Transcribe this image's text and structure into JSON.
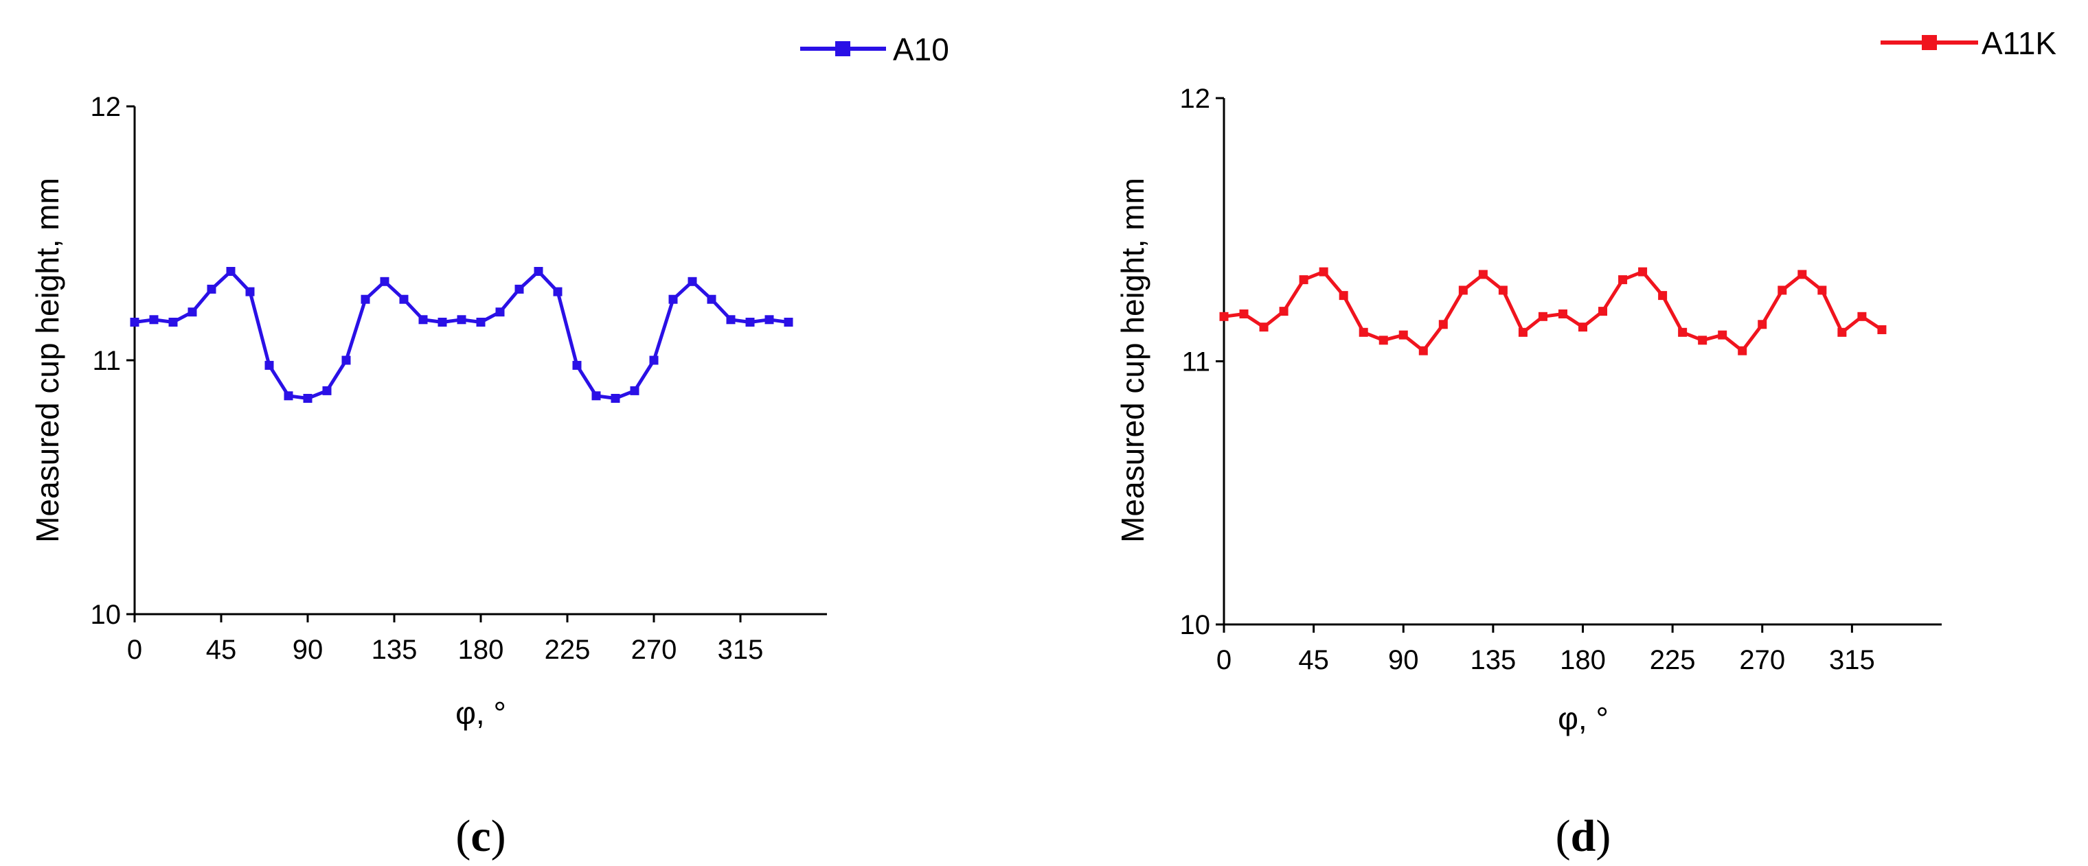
{
  "chart_data": [
    {
      "type": "line",
      "panel_label": "c",
      "xlabel": "φ, °",
      "ylabel": "Measured cup height, mm",
      "xlim": [
        0,
        360
      ],
      "ylim": [
        10,
        12
      ],
      "xticks": [
        0,
        45,
        90,
        135,
        180,
        225,
        270,
        315
      ],
      "yticks": [
        10,
        11,
        12
      ],
      "legend_position": "top-right",
      "series": [
        {
          "name": "A10",
          "color": "#2a10e6",
          "marker": "square",
          "x": [
            0,
            10,
            20,
            30,
            40,
            50,
            60,
            70,
            80,
            90,
            100,
            110,
            120,
            130,
            140,
            150,
            160,
            170,
            180,
            190,
            200,
            210,
            220,
            230,
            240,
            250,
            260,
            270,
            280,
            290,
            300,
            310,
            320,
            330,
            340
          ],
          "y": [
            11.15,
            11.16,
            11.15,
            11.19,
            11.28,
            11.35,
            11.27,
            10.98,
            10.86,
            10.85,
            10.88,
            11.0,
            11.24,
            11.31,
            11.24,
            11.16,
            11.15,
            11.16,
            11.15,
            11.19,
            11.28,
            11.35,
            11.27,
            10.98,
            10.86,
            10.85,
            10.88,
            11.0,
            11.24,
            11.31,
            11.24,
            11.16,
            11.15,
            11.16,
            11.15
          ]
        }
      ]
    },
    {
      "type": "line",
      "panel_label": "d",
      "xlabel": "φ, °",
      "ylabel": "Measured cup height, mm",
      "xlim": [
        0,
        360
      ],
      "ylim": [
        10,
        12
      ],
      "xticks": [
        0,
        45,
        90,
        135,
        180,
        225,
        270,
        315
      ],
      "yticks": [
        10,
        11,
        12
      ],
      "legend_position": "top-right",
      "series": [
        {
          "name": "A11K",
          "color": "#f0141e",
          "marker": "square",
          "x": [
            0,
            10,
            20,
            30,
            40,
            50,
            60,
            70,
            80,
            90,
            100,
            110,
            120,
            130,
            140,
            150,
            160,
            170,
            180,
            190,
            200,
            210,
            220,
            230,
            240,
            250,
            260,
            270,
            280,
            290,
            300,
            310,
            320,
            330
          ],
          "y": [
            11.17,
            11.18,
            11.13,
            11.19,
            11.31,
            11.34,
            11.25,
            11.11,
            11.08,
            11.1,
            11.04,
            11.14,
            11.27,
            11.33,
            11.27,
            11.11,
            11.17,
            11.18,
            11.13,
            11.19,
            11.31,
            11.34,
            11.25,
            11.11,
            11.08,
            11.1,
            11.04,
            11.14,
            11.27,
            11.33,
            11.27,
            11.11,
            11.17,
            11.12
          ]
        }
      ]
    }
  ]
}
